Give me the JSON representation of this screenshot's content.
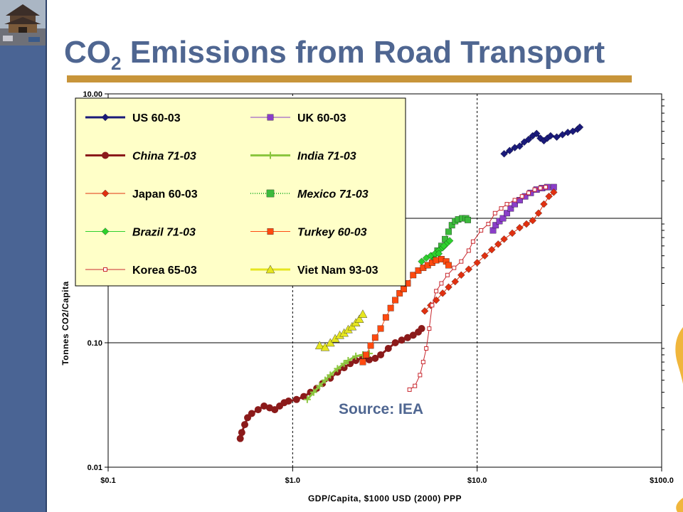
{
  "slide": {
    "title_main": "CO",
    "title_subscript": "2",
    "title_rest": " Emissions from Road Transport",
    "source": "Source: IEA",
    "colors": {
      "sidebar": "#4a6494",
      "title": "#4f6691",
      "rule": "#c8953a",
      "legend_bg": "#ffffc8"
    }
  },
  "chart_data": {
    "type": "scatter",
    "xlabel": "GDP/Capita, $1000 USD (2000) PPP",
    "ylabel": "Tonnes CO2/Capita",
    "x_scale": "log",
    "y_scale": "log",
    "xlim": [
      0.1,
      100
    ],
    "ylim": [
      0.01,
      10
    ],
    "x_ticks": [
      0.1,
      1,
      10,
      100
    ],
    "x_tick_labels": [
      "$0.1",
      "$1.0",
      "$10.0",
      "$100.0"
    ],
    "y_ticks": [
      0.01,
      0.1,
      10
    ],
    "y_tick_labels": [
      "0.01",
      "0.10",
      "10.00"
    ],
    "legend_position": "top-left",
    "series": [
      {
        "name": "US 60-03",
        "color": "#1a1a7a",
        "marker": "diamond",
        "line": "thick",
        "italic": false,
        "points": [
          [
            14,
            3.3
          ],
          [
            15,
            3.5
          ],
          [
            16,
            3.7
          ],
          [
            17,
            3.8
          ],
          [
            18,
            4.1
          ],
          [
            19,
            4.3
          ],
          [
            20,
            4.6
          ],
          [
            21,
            4.8
          ],
          [
            22,
            4.4
          ],
          [
            23,
            4.2
          ],
          [
            24,
            4.4
          ],
          [
            25,
            4.6
          ],
          [
            27,
            4.5
          ],
          [
            29,
            4.7
          ],
          [
            31,
            4.9
          ],
          [
            33,
            5.0
          ],
          [
            35,
            5.2
          ],
          [
            36,
            5.4
          ]
        ]
      },
      {
        "name": "UK 60-03",
        "color": "#8a3ec8",
        "marker": "square",
        "line": "thin",
        "italic": false,
        "points": [
          [
            12.2,
            0.8
          ],
          [
            12.6,
            0.88
          ],
          [
            13.2,
            0.95
          ],
          [
            13.8,
            1.0
          ],
          [
            14.5,
            1.1
          ],
          [
            15.2,
            1.2
          ],
          [
            16,
            1.3
          ],
          [
            17,
            1.4
          ],
          [
            18.2,
            1.5
          ],
          [
            19.5,
            1.6
          ],
          [
            21,
            1.7
          ],
          [
            22.5,
            1.75
          ],
          [
            24,
            1.78
          ],
          [
            26,
            1.78
          ]
        ]
      },
      {
        "name": "China 71-03",
        "color": "#8b1a1a",
        "marker": "circle",
        "line": "thick",
        "italic": true,
        "points": [
          [
            0.52,
            0.017
          ],
          [
            0.53,
            0.019
          ],
          [
            0.55,
            0.022
          ],
          [
            0.57,
            0.025
          ],
          [
            0.6,
            0.027
          ],
          [
            0.65,
            0.029
          ],
          [
            0.7,
            0.031
          ],
          [
            0.75,
            0.03
          ],
          [
            0.8,
            0.029
          ],
          [
            0.85,
            0.031
          ],
          [
            0.9,
            0.033
          ],
          [
            0.95,
            0.034
          ],
          [
            1.05,
            0.035
          ],
          [
            1.15,
            0.037
          ],
          [
            1.25,
            0.04
          ],
          [
            1.35,
            0.043
          ],
          [
            1.45,
            0.047
          ],
          [
            1.6,
            0.052
          ],
          [
            1.75,
            0.058
          ],
          [
            1.9,
            0.063
          ],
          [
            2.05,
            0.068
          ],
          [
            2.2,
            0.072
          ],
          [
            2.4,
            0.076
          ],
          [
            2.6,
            0.073
          ],
          [
            2.8,
            0.075
          ],
          [
            3.0,
            0.08
          ],
          [
            3.3,
            0.09
          ],
          [
            3.6,
            0.1
          ],
          [
            3.9,
            0.105
          ],
          [
            4.2,
            0.11
          ],
          [
            4.5,
            0.115
          ],
          [
            4.8,
            0.122
          ],
          [
            5.0,
            0.13
          ]
        ]
      },
      {
        "name": "India 71-03",
        "color": "#8cc63f",
        "marker": "plus",
        "line": "thick",
        "italic": true,
        "points": [
          [
            1.2,
            0.035
          ],
          [
            1.3,
            0.04
          ],
          [
            1.4,
            0.045
          ],
          [
            1.5,
            0.05
          ],
          [
            1.6,
            0.055
          ],
          [
            1.75,
            0.062
          ],
          [
            1.9,
            0.068
          ],
          [
            2.0,
            0.072
          ],
          [
            2.2,
            0.078
          ],
          [
            2.4,
            0.08
          ],
          [
            2.6,
            0.082
          ]
        ]
      },
      {
        "name": "Japan 60-03",
        "color": "#e03010",
        "marker": "diamond",
        "line": "thin",
        "italic": false,
        "points": [
          [
            5.2,
            0.18
          ],
          [
            5.6,
            0.2
          ],
          [
            6.0,
            0.22
          ],
          [
            6.5,
            0.25
          ],
          [
            7.0,
            0.28
          ],
          [
            7.6,
            0.31
          ],
          [
            8.2,
            0.35
          ],
          [
            9.0,
            0.39
          ],
          [
            10,
            0.44
          ],
          [
            11,
            0.5
          ],
          [
            12,
            0.56
          ],
          [
            13,
            0.62
          ],
          [
            14,
            0.68
          ],
          [
            15.5,
            0.76
          ],
          [
            17,
            0.84
          ],
          [
            18.5,
            0.9
          ],
          [
            20,
            0.96
          ],
          [
            21.5,
            1.1
          ],
          [
            23,
            1.3
          ],
          [
            24.5,
            1.5
          ],
          [
            26,
            1.62
          ]
        ]
      },
      {
        "name": "Mexico 71-03",
        "color": "#3cba3c",
        "marker": "square",
        "line": "dotted",
        "italic": true,
        "points": [
          [
            5.8,
            0.5
          ],
          [
            6.1,
            0.55
          ],
          [
            6.4,
            0.6
          ],
          [
            6.7,
            0.68
          ],
          [
            7.0,
            0.78
          ],
          [
            7.3,
            0.88
          ],
          [
            7.6,
            0.95
          ],
          [
            7.9,
            0.98
          ],
          [
            8.3,
            1.0
          ],
          [
            8.7,
            1.0
          ],
          [
            8.9,
            0.97
          ]
        ]
      },
      {
        "name": "Brazil 71-03",
        "color": "#2ed02e",
        "marker": "diamond",
        "line": "thin",
        "italic": true,
        "points": [
          [
            5.0,
            0.45
          ],
          [
            5.3,
            0.48
          ],
          [
            5.6,
            0.5
          ],
          [
            5.9,
            0.52
          ],
          [
            6.2,
            0.55
          ],
          [
            6.5,
            0.58
          ],
          [
            6.8,
            0.62
          ],
          [
            7.1,
            0.66
          ],
          [
            6.6,
            0.6
          ],
          [
            6.2,
            0.52
          ],
          [
            5.8,
            0.46
          ]
        ]
      },
      {
        "name": "Turkey 60-03",
        "color": "#ff4a10",
        "marker": "square",
        "line": "thin",
        "italic": true,
        "points": [
          [
            2.4,
            0.07
          ],
          [
            2.5,
            0.08
          ],
          [
            2.65,
            0.095
          ],
          [
            2.8,
            0.11
          ],
          [
            3.0,
            0.13
          ],
          [
            3.2,
            0.16
          ],
          [
            3.4,
            0.19
          ],
          [
            3.6,
            0.22
          ],
          [
            3.8,
            0.25
          ],
          [
            4.0,
            0.27
          ],
          [
            4.2,
            0.3
          ],
          [
            4.5,
            0.35
          ],
          [
            4.8,
            0.38
          ],
          [
            5.1,
            0.4
          ],
          [
            5.4,
            0.42
          ],
          [
            5.7,
            0.44
          ],
          [
            6.0,
            0.46
          ],
          [
            6.4,
            0.47
          ],
          [
            6.8,
            0.45
          ],
          [
            7.0,
            0.42
          ]
        ]
      },
      {
        "name": "Korea 65-03",
        "color": "#c8282f",
        "marker": "square-small",
        "line": "thin",
        "italic": false,
        "points": [
          [
            4.3,
            0.042
          ],
          [
            4.6,
            0.045
          ],
          [
            4.9,
            0.055
          ],
          [
            5.1,
            0.07
          ],
          [
            5.3,
            0.09
          ],
          [
            5.5,
            0.13
          ],
          [
            5.7,
            0.2
          ],
          [
            6.0,
            0.26
          ],
          [
            6.4,
            0.3
          ],
          [
            6.9,
            0.35
          ],
          [
            7.5,
            0.4
          ],
          [
            8.2,
            0.45
          ],
          [
            9.0,
            0.55
          ],
          [
            9.5,
            0.65
          ],
          [
            10.5,
            0.8
          ],
          [
            11.5,
            0.9
          ],
          [
            12.5,
            1.1
          ],
          [
            13.5,
            1.2
          ],
          [
            14.5,
            1.3
          ],
          [
            16,
            1.4
          ],
          [
            17.5,
            1.5
          ],
          [
            19,
            1.6
          ],
          [
            20.5,
            1.7
          ],
          [
            22,
            1.75
          ],
          [
            23.5,
            1.78
          ]
        ]
      },
      {
        "name": "Viet Nam 93-03",
        "color": "#e6e620",
        "marker": "triangle",
        "line": "thick",
        "italic": false,
        "points": [
          [
            1.4,
            0.095
          ],
          [
            1.5,
            0.092
          ],
          [
            1.6,
            0.1
          ],
          [
            1.7,
            0.108
          ],
          [
            1.8,
            0.115
          ],
          [
            1.9,
            0.12
          ],
          [
            2.0,
            0.128
          ],
          [
            2.1,
            0.135
          ],
          [
            2.2,
            0.145
          ],
          [
            2.3,
            0.155
          ],
          [
            2.4,
            0.17
          ]
        ]
      }
    ]
  }
}
